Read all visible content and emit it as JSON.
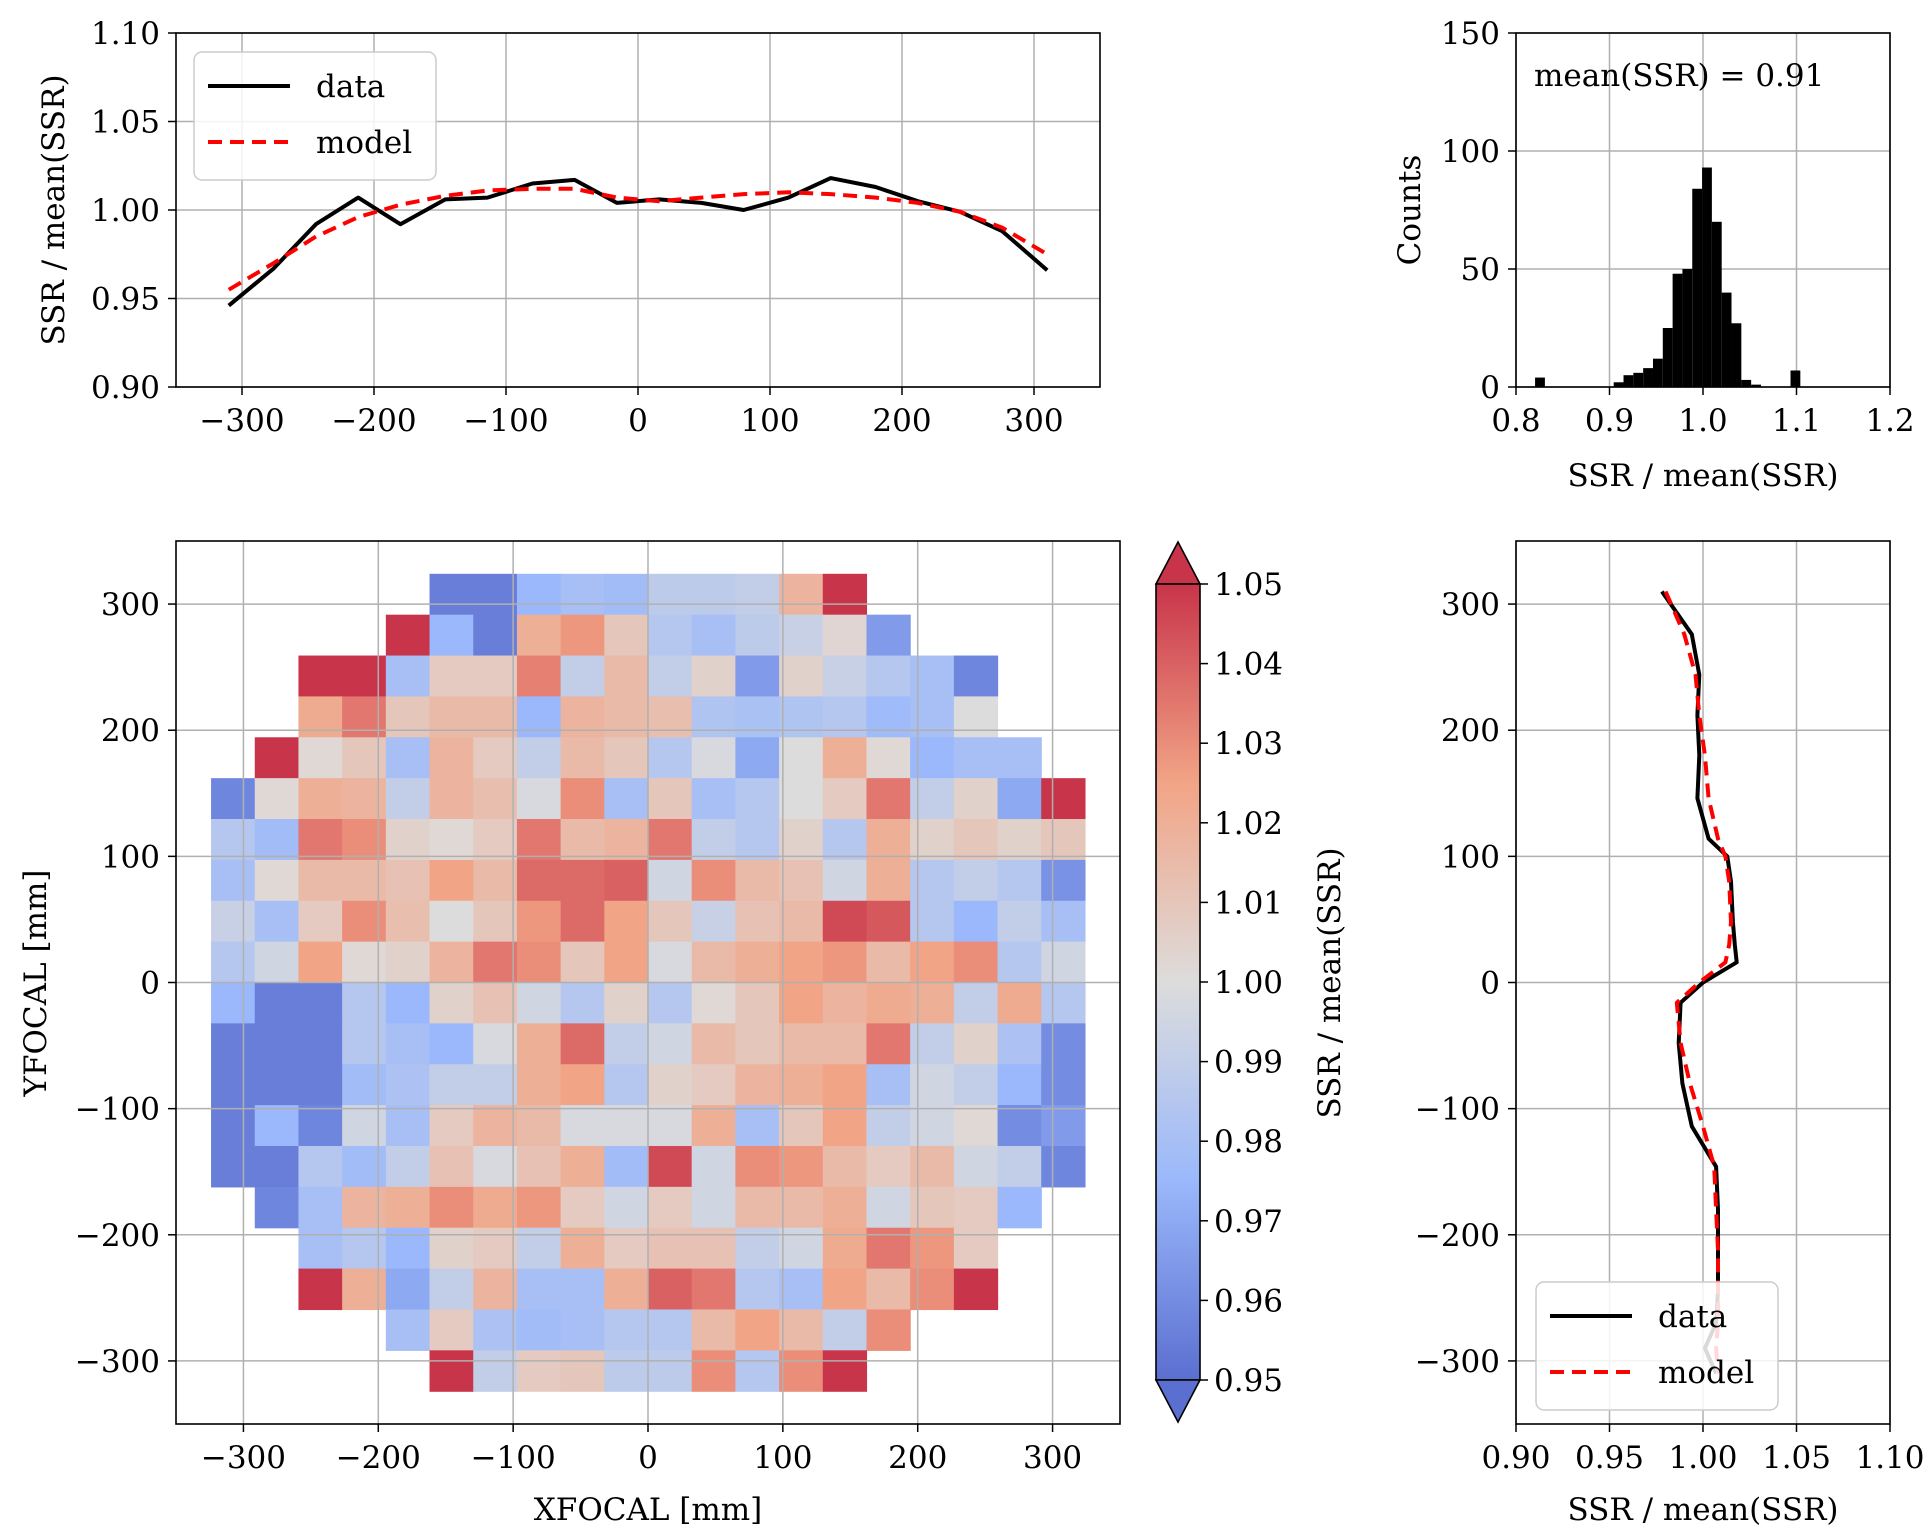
{
  "figure_description": "Four-panel diagnostic figure of SSR / mean(SSR) across the focal plane",
  "colors": {
    "data": "#000000",
    "model": "#ff0000",
    "grid": "#b0b0b0",
    "hist": "#000000"
  },
  "chart_data": [
    {
      "id": "top",
      "type": "line",
      "xlabel": "",
      "ylabel": "SSR / mean(SSR)",
      "xlim": [
        -350,
        350
      ],
      "ylim": [
        0.9,
        1.1
      ],
      "xticks": [
        -300,
        -200,
        -100,
        0,
        100,
        200,
        300
      ],
      "xtick_labels": [
        "−300",
        "−200",
        "−100",
        "0",
        "100",
        "200",
        "300"
      ],
      "yticks": [
        0.9,
        0.95,
        1.0,
        1.05,
        1.1
      ],
      "ytick_labels": [
        "0.90",
        "0.95",
        "1.00",
        "1.05",
        "1.10"
      ],
      "legend": [
        "data",
        "model"
      ],
      "legend_position": "upper-left",
      "series": [
        {
          "name": "data",
          "style": "solid",
          "x": [
            -310,
            -276,
            -244,
            -212,
            -180,
            -146,
            -114,
            -80,
            -48,
            -16,
            16,
            48,
            80,
            114,
            146,
            180,
            212,
            244,
            276,
            310
          ],
          "y": [
            0.946,
            0.967,
            0.992,
            1.007,
            0.992,
            1.006,
            1.007,
            1.015,
            1.017,
            1.004,
            1.006,
            1.004,
            1.0,
            1.007,
            1.018,
            1.013,
            1.005,
            0.999,
            0.988,
            0.966
          ]
        },
        {
          "name": "model",
          "style": "dashed",
          "x": [
            -310,
            -276,
            -244,
            -212,
            -180,
            -146,
            -114,
            -80,
            -48,
            -16,
            16,
            48,
            80,
            114,
            146,
            180,
            212,
            244,
            276,
            310
          ],
          "y": [
            0.955,
            0.97,
            0.985,
            0.996,
            1.003,
            1.008,
            1.011,
            1.012,
            1.012,
            1.007,
            1.005,
            1.007,
            1.009,
            1.01,
            1.009,
            1.007,
            1.004,
            0.999,
            0.99,
            0.975
          ]
        }
      ]
    },
    {
      "id": "hist",
      "type": "bar",
      "xlabel": "SSR / mean(SSR)",
      "ylabel": "Counts",
      "xlim": [
        0.8,
        1.2
      ],
      "ylim": [
        0,
        150
      ],
      "xticks": [
        0.8,
        0.9,
        1.0,
        1.1,
        1.2
      ],
      "xtick_labels": [
        "0.8",
        "0.9",
        "1.0",
        "1.1",
        "1.2"
      ],
      "yticks": [
        0,
        50,
        100,
        150
      ],
      "ytick_labels": [
        "0",
        "50",
        "100",
        "150"
      ],
      "annotation": "mean(SSR) = 0.91",
      "bin_width": 0.0105,
      "bin_left_edges": [
        0.8204,
        0.9045,
        0.915,
        0.9255,
        0.936,
        0.9465,
        0.957,
        0.9675,
        0.978,
        0.9885,
        0.999,
        1.0095,
        1.02,
        1.0305,
        1.041,
        1.0515,
        1.0936
      ],
      "values": [
        4,
        2,
        5,
        6,
        8,
        12,
        25,
        48,
        50,
        84,
        93,
        70,
        40,
        27,
        3,
        1,
        7
      ]
    },
    {
      "id": "heatmap",
      "type": "heatmap",
      "xlabel": "XFOCAL [mm]",
      "ylabel": "YFOCAL [mm]",
      "xlim": [
        -350,
        350
      ],
      "ylim": [
        -350,
        350
      ],
      "xticks": [
        -300,
        -200,
        -100,
        0,
        100,
        200,
        300
      ],
      "xtick_labels": [
        "−300",
        "−200",
        "−100",
        "0",
        "100",
        "200",
        "300"
      ],
      "yticks": [
        -300,
        -200,
        -100,
        0,
        100,
        200,
        300
      ],
      "ytick_labels": [
        "−300",
        "−200",
        "−100",
        "0",
        "100",
        "200",
        "300"
      ],
      "x0": -324,
      "y0": -324,
      "cell": 32.4,
      "ncols": 20,
      "nrows": 20,
      "vmin": 0.95,
      "vmax": 1.05,
      "colormap": "coolwarm",
      "rows_top_to_bottom": [
        ". . . . . 0.955 0.955 0.975 0.980 0.978 0.988 0.988 0.990 1.018 1.050 . . . . .",
        ". . . . 1.050 0.975 0.955 1.020 1.028 1.010 0.985 0.980 0.988 0.992 1.003 0.965 . . . .",
        ". . 1.050 1.050 0.980 1.008 1.008 1.033 0.990 1.015 0.990 1.005 0.965 1.005 0.992 0.985 0.980 0.958 . .",
        ". . 1.022 1.035 1.010 1.015 1.015 0.975 1.018 1.015 1.013 0.983 0.981 0.983 0.985 0.977 0.980 1.000 . .",
        ". 1.050 1.002 1.010 0.980 1.018 1.008 0.990 1.015 1.010 0.985 0.998 0.970 1.000 1.020 1.002 0.975 0.980 0.980 .",
        "0.958 1.002 1.020 1.018 0.990 1.018 1.013 0.998 1.030 0.980 1.010 0.980 0.985 1.000 1.008 1.035 0.990 1.005 0.970 1.050",
        "0.985 0.978 1.035 1.030 1.005 1.002 1.008 1.035 1.015 1.018 1.035 0.990 0.985 1.005 0.985 1.020 1.005 1.010 1.005 1.010",
        "0.980 1.002 1.015 1.015 1.012 1.025 1.015 1.038 1.038 1.040 0.995 1.030 1.015 1.012 0.995 1.020 0.985 0.990 0.985 0.962",
        "0.992 0.980 1.008 1.030 1.013 1.000 1.010 1.028 1.038 1.025 1.010 0.992 1.012 1.015 1.045 1.042 0.985 0.975 0.990 0.980",
        "0.985 0.995 1.025 1.002 1.005 1.018 1.035 1.030 1.010 1.025 0.998 1.015 1.020 1.025 1.028 1.015 1.025 1.030 0.985 0.995",
        "0.975 0.955 0.955 0.985 0.975 1.005 1.012 0.995 0.985 1.005 0.985 1.002 1.010 1.025 1.018 1.022 1.020 0.990 1.022 0.985",
        "0.955 0.955 0.955 0.985 0.980 0.975 0.998 1.020 1.038 0.990 0.995 1.015 1.010 1.015 1.015 1.035 0.990 1.005 0.982 0.960",
        "0.955 0.955 0.955 0.978 0.982 0.990 0.990 1.020 1.025 0.985 1.005 1.008 1.018 1.020 1.025 0.980 0.995 0.990 0.975 0.960",
        "0.955 0.975 0.958 0.995 0.980 1.008 1.018 1.015 0.998 0.998 0.998 1.020 0.980 1.010 1.025 0.990 0.995 1.002 0.960 0.965",
        "0.955 0.955 0.985 0.978 0.990 1.012 0.998 1.012 1.020 0.978 1.045 0.995 1.030 1.028 1.015 1.008 1.015 0.995 0.990 0.958",
        ". 0.958 0.980 1.018 1.020 1.030 1.022 1.028 1.008 0.995 1.008 0.995 1.015 1.015 1.020 0.995 1.010 1.008 0.975 .",
        ". . 0.980 0.985 0.975 1.005 1.008 0.990 1.020 1.008 1.012 1.012 0.990 0.995 1.022 1.035 1.028 1.008 . .",
        ". . 1.050 1.020 0.970 0.990 1.018 0.980 0.980 1.020 1.040 1.035 0.985 0.980 1.025 1.015 1.030 1.050 . .",
        ". . . . 0.980 1.008 0.982 0.978 0.980 0.985 0.985 1.015 1.025 1.015 0.990 1.030 . . . .",
        ". . . . . 1.050 0.990 1.008 1.010 0.988 0.988 1.030 0.985 1.030 1.050 . . . . ."
      ]
    },
    {
      "id": "colorbar",
      "type": "colorbar",
      "label": "SSR / mean(SSR)",
      "vmin": 0.95,
      "vmax": 1.05,
      "ticks": [
        0.95,
        0.96,
        0.97,
        0.98,
        0.99,
        1.0,
        1.01,
        1.02,
        1.03,
        1.04,
        1.05
      ],
      "tick_labels": [
        "0.95",
        "0.96",
        "0.97",
        "0.98",
        "0.99",
        "1.00",
        "1.01",
        "1.02",
        "1.03",
        "1.04",
        "1.05"
      ]
    },
    {
      "id": "side",
      "type": "line",
      "xlabel": "SSR / mean(SSR)",
      "ylabel": "",
      "xlim": [
        0.9,
        1.1
      ],
      "ylim": [
        -350,
        350
      ],
      "xticks": [
        0.9,
        0.95,
        1.0,
        1.05,
        1.1
      ],
      "xtick_labels": [
        "0.90",
        "0.95",
        "1.00",
        "1.05",
        "1.10"
      ],
      "yticks": [
        -300,
        -200,
        -100,
        0,
        100,
        200,
        300
      ],
      "ytick_labels": [
        "−300",
        "−200",
        "−100",
        "0",
        "100",
        "200",
        "300"
      ],
      "legend": [
        "data",
        "model"
      ],
      "legend_position": "lower-right",
      "series": [
        {
          "name": "data",
          "style": "solid",
          "x": [
            0.978,
            0.994,
            0.998,
            0.997,
            0.998,
            0.997,
            1.003,
            1.013,
            1.015,
            1.016,
            1.017,
            1.018,
            1.0,
            0.988,
            0.987,
            0.989,
            0.994,
            1.007,
            1.008,
            1.008,
            1.008,
            1.007,
            1.001,
            1.007
          ],
          "y": [
            310,
            276,
            244,
            212,
            180,
            146,
            114,
            100,
            80,
            48,
            30,
            16,
            0,
            -16,
            -48,
            -80,
            -114,
            -146,
            -180,
            -212,
            -244,
            -270,
            -290,
            -310
          ]
        },
        {
          "name": "model",
          "style": "dashed",
          "x": [
            0.98,
            0.99,
            0.996,
            0.998,
            1.001,
            1.003,
            1.008,
            1.012,
            1.014,
            1.015,
            1.014,
            1.012,
            0.998,
            0.986,
            0.988,
            0.993,
            1.0,
            1.006,
            1.007,
            1.008,
            1.008,
            1.008,
            1.007,
            1.008
          ],
          "y": [
            310,
            276,
            244,
            212,
            180,
            146,
            114,
            100,
            80,
            48,
            30,
            16,
            0,
            -16,
            -48,
            -80,
            -114,
            -146,
            -180,
            -212,
            -244,
            -270,
            -290,
            -310
          ]
        }
      ]
    }
  ]
}
